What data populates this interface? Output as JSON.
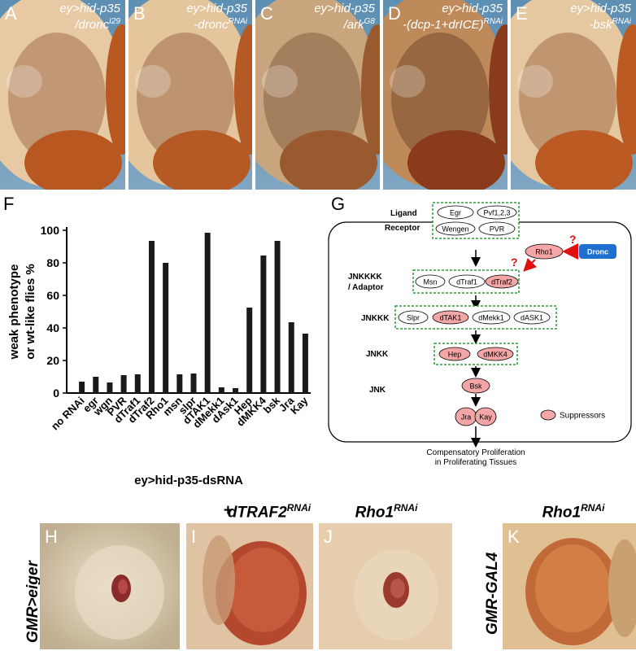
{
  "top_panels": [
    {
      "label": "A",
      "line1": "ey>hid-p35",
      "line2": "/dronc",
      "sup": "I29"
    },
    {
      "label": "B",
      "line1": "ey>hid-p35",
      "line2": "-dronc",
      "sup": "RNAi"
    },
    {
      "label": "C",
      "line1": "ey>hid-p35",
      "line2": "/ark",
      "sup": "G8"
    },
    {
      "label": "D",
      "line1": "ey>hid-p35",
      "line2": "-(dcp-1+drICE)",
      "sup": "RNAi"
    },
    {
      "label": "E",
      "line1": "ey>hid-p35",
      "line2": "-bsk",
      "sup": "RNAi"
    }
  ],
  "panel_F": {
    "label": "F"
  },
  "chart_data": {
    "type": "bar",
    "categories": [
      "no RNAi",
      "egr",
      "wgn",
      "PVR",
      "dTraf1",
      "dTraf2",
      "Rho1",
      "msn",
      "slpr",
      "dTAK1",
      "dMekk1",
      "dAsk1",
      "Hep",
      "dMKK4",
      "bsk",
      "Jra",
      "Kay"
    ],
    "values": [
      7,
      10,
      6.5,
      11,
      11.5,
      93.5,
      80,
      11.5,
      12,
      98.5,
      3.5,
      3,
      52.5,
      84.5,
      93.5,
      43.5,
      36.5
    ],
    "ylabel_line1": "weak phenotype",
    "ylabel_line2": "or wt-like flies %",
    "xlabel": "ey>hid-p35-dsRNA",
    "ylim": [
      0,
      100
    ],
    "yticks": [
      "0",
      "20",
      "40",
      "60",
      "80",
      "100"
    ]
  },
  "panel_G": {
    "label": "G",
    "levels": {
      "ligand": "Ligand",
      "receptor": "Receptor",
      "jnkkkk_l1": "JNKKKK",
      "jnkkkk_l2": "/ Adaptor",
      "jnkkk": "JNKKK",
      "jnkk": "JNKK",
      "jnk": "JNK"
    },
    "nodes": {
      "egr": "Egr",
      "pvf": "Pvf1,2,3",
      "wengen": "Wengen",
      "pvr": "PVR",
      "rho1": "Rho1",
      "dronc": "Dronc",
      "msn": "Msn",
      "dtraf1": "dTraf1",
      "dtraf2": "dTraf2",
      "slpr": "Slpr",
      "dtak1": "dTAK1",
      "dmekk1": "dMekk1",
      "dask1": "dASK1",
      "hep": "Hep",
      "dmkk4": "dMKK4",
      "bsk": "Bsk",
      "jra": "Jra",
      "kay": "Kay"
    },
    "question_mark": "?",
    "legend": "Suppressors",
    "output_l1": "Compensatory Proliferation",
    "output_l2": "in Proliferating Tissues",
    "colors": {
      "suppressor": "#f4a6a6",
      "dronc": "#1f6fd1",
      "arrow_red": "#e01010",
      "box": "#2e9a3a"
    }
  },
  "bottom": {
    "row_label": "GMR>eiger",
    "row_label_2": "GMR-GAL4",
    "col_plus": "+",
    "col_dtraf2": "dTRAF2",
    "col_dtraf2_sup": "RNAi",
    "col_rho1": "Rho1",
    "col_rho1_sup": "RNAi",
    "col_rho1b": "Rho1",
    "col_rho1b_sup": "RNAi",
    "labels": [
      "H",
      "I",
      "J",
      "K"
    ]
  }
}
